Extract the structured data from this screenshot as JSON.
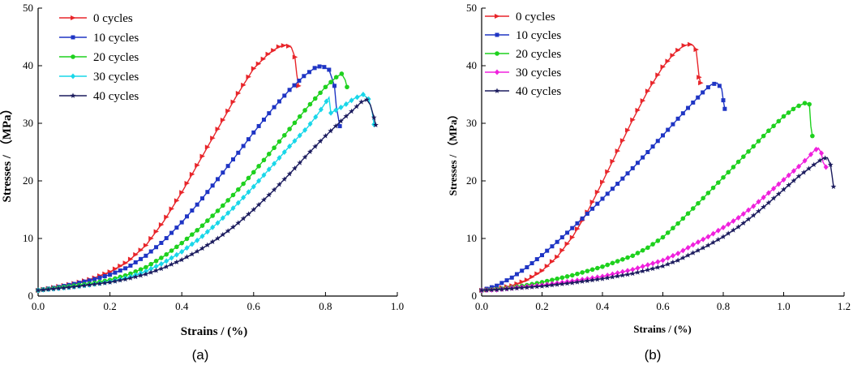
{
  "chart_data": [
    {
      "type": "line",
      "panel_label": "(a)",
      "title": "",
      "xlabel": "Strains /  (%)",
      "ylabel": "Stresses / （MPa）",
      "xlim": [
        0,
        1.0
      ],
      "ylim": [
        0,
        50
      ],
      "xticks": [
        "0.0",
        "0.2",
        "0.4",
        "0.6",
        "0.8",
        "1.0"
      ],
      "yticks": [
        "0",
        "10",
        "20",
        "30",
        "40",
        "50"
      ],
      "grid": false,
      "legend_position": "top-left",
      "series": [
        {
          "name": "0 cycles",
          "color": "#e8252a",
          "marker": "triangle-right",
          "x": [
            0,
            0.05,
            0.1,
            0.15,
            0.2,
            0.25,
            0.3,
            0.35,
            0.4,
            0.45,
            0.5,
            0.55,
            0.6,
            0.64,
            0.67,
            0.69,
            0.705,
            0.715,
            0.72,
            0.725
          ],
          "y": [
            1.0,
            1.6,
            2.2,
            3.0,
            4.2,
            6.0,
            8.8,
            13.0,
            18.0,
            23.5,
            29.0,
            34.5,
            39.5,
            42.0,
            43.3,
            43.6,
            43.2,
            41.5,
            38.5,
            36.5
          ]
        },
        {
          "name": "10 cycles",
          "color": "#1f35c4",
          "marker": "square",
          "x": [
            0,
            0.05,
            0.1,
            0.15,
            0.2,
            0.25,
            0.3,
            0.35,
            0.4,
            0.45,
            0.5,
            0.55,
            0.6,
            0.65,
            0.7,
            0.74,
            0.77,
            0.79,
            0.81,
            0.825,
            0.83,
            0.84
          ],
          "y": [
            1.0,
            1.5,
            2.1,
            2.8,
            3.7,
            5.0,
            7.0,
            9.6,
            12.8,
            16.4,
            20.3,
            24.3,
            28.4,
            32.3,
            35.8,
            38.2,
            39.6,
            40.0,
            39.3,
            36.5,
            33.0,
            29.5
          ]
        },
        {
          "name": "20 cycles",
          "color": "#1ed11e",
          "marker": "circle",
          "x": [
            0,
            0.05,
            0.1,
            0.15,
            0.2,
            0.25,
            0.3,
            0.35,
            0.4,
            0.45,
            0.5,
            0.55,
            0.6,
            0.65,
            0.7,
            0.75,
            0.8,
            0.83,
            0.845,
            0.855,
            0.86
          ],
          "y": [
            1.0,
            1.4,
            1.8,
            2.2,
            2.8,
            3.7,
            5.0,
            6.9,
            9.2,
            11.8,
            14.8,
            18.0,
            21.5,
            25.2,
            29.0,
            32.8,
            36.3,
            38.0,
            38.6,
            37.5,
            36.3
          ]
        },
        {
          "name": "30 cycles",
          "color": "#19d7e9",
          "marker": "diamond",
          "x": [
            0,
            0.05,
            0.1,
            0.15,
            0.2,
            0.25,
            0.3,
            0.35,
            0.4,
            0.45,
            0.5,
            0.55,
            0.6,
            0.65,
            0.7,
            0.75,
            0.78,
            0.81,
            0.815,
            0.85,
            0.88,
            0.905,
            0.92,
            0.93,
            0.935
          ],
          "y": [
            1.0,
            1.3,
            1.6,
            2.0,
            2.5,
            3.2,
            4.3,
            5.8,
            7.7,
            10.0,
            12.7,
            15.7,
            19.0,
            22.5,
            26.0,
            29.3,
            31.7,
            34.5,
            31.8,
            33.0,
            34.3,
            35.0,
            34.2,
            32.0,
            29.8
          ]
        },
        {
          "name": "40 cycles",
          "color": "#1b1b5e",
          "marker": "star",
          "x": [
            0,
            0.05,
            0.1,
            0.15,
            0.2,
            0.25,
            0.3,
            0.35,
            0.4,
            0.45,
            0.5,
            0.55,
            0.6,
            0.65,
            0.7,
            0.75,
            0.8,
            0.85,
            0.88,
            0.9,
            0.915,
            0.925,
            0.935,
            0.94
          ],
          "y": [
            1.0,
            1.3,
            1.6,
            2.0,
            2.4,
            3.0,
            3.8,
            4.9,
            6.3,
            8.0,
            10.0,
            12.3,
            15.0,
            18.0,
            21.2,
            24.6,
            27.8,
            30.8,
            32.5,
            33.7,
            34.1,
            33.2,
            31.0,
            29.7
          ]
        }
      ]
    },
    {
      "type": "line",
      "panel_label": "(b)",
      "title": "",
      "xlabel": "Strains  /  (%)",
      "ylabel": "Stresses / （MPa）",
      "xlim": [
        0,
        1.2
      ],
      "ylim": [
        0,
        50
      ],
      "xticks": [
        "0.0",
        "0.2",
        "0.4",
        "0.6",
        "0.8",
        "1.0",
        "1.2"
      ],
      "yticks": [
        "0",
        "10",
        "20",
        "30",
        "40",
        "50"
      ],
      "grid": false,
      "legend_position": "top-left",
      "series": [
        {
          "name": "0 cycles",
          "color": "#e8252a",
          "marker": "triangle-right",
          "x": [
            0,
            0.05,
            0.1,
            0.15,
            0.2,
            0.25,
            0.3,
            0.35,
            0.4,
            0.45,
            0.5,
            0.55,
            0.6,
            0.64,
            0.67,
            0.69,
            0.7,
            0.71,
            0.715,
            0.72,
            0.725
          ],
          "y": [
            1.0,
            1.3,
            1.8,
            2.8,
            4.4,
            6.8,
            10.2,
            14.6,
            19.8,
            25.2,
            30.6,
            35.6,
            39.8,
            42.3,
            43.5,
            43.7,
            43.5,
            42.8,
            40.5,
            38.0,
            37.0
          ]
        },
        {
          "name": "10 cycles",
          "color": "#1f35c4",
          "marker": "square",
          "x": [
            0,
            0.05,
            0.1,
            0.15,
            0.2,
            0.25,
            0.3,
            0.35,
            0.4,
            0.45,
            0.5,
            0.55,
            0.6,
            0.65,
            0.7,
            0.74,
            0.76,
            0.78,
            0.795,
            0.8,
            0.805
          ],
          "y": [
            1.0,
            1.8,
            3.2,
            5.0,
            7.1,
            9.4,
            11.8,
            14.3,
            16.9,
            19.5,
            22.2,
            25.0,
            27.9,
            30.8,
            33.6,
            35.8,
            36.7,
            37.0,
            36.0,
            34.0,
            32.5
          ]
        },
        {
          "name": "20 cycles",
          "color": "#1ed11e",
          "marker": "circle",
          "x": [
            0,
            0.05,
            0.1,
            0.15,
            0.2,
            0.3,
            0.4,
            0.5,
            0.55,
            0.6,
            0.65,
            0.7,
            0.75,
            0.8,
            0.85,
            0.9,
            0.95,
            1.0,
            1.04,
            1.07,
            1.085,
            1.09,
            1.095
          ],
          "y": [
            1.0,
            1.2,
            1.5,
            1.9,
            2.4,
            3.6,
            5.1,
            7.0,
            8.4,
            10.2,
            12.6,
            15.2,
            17.9,
            20.6,
            23.3,
            26.0,
            28.7,
            31.2,
            32.8,
            33.5,
            33.3,
            29.5,
            27.8
          ]
        },
        {
          "name": "30 cycles",
          "color": "#f020dd",
          "marker": "diamond",
          "x": [
            0,
            0.05,
            0.1,
            0.2,
            0.3,
            0.4,
            0.5,
            0.6,
            0.65,
            0.7,
            0.75,
            0.8,
            0.85,
            0.9,
            0.95,
            1.0,
            1.05,
            1.08,
            1.1,
            1.115,
            1.125,
            1.13,
            1.14
          ],
          "y": [
            1.0,
            1.1,
            1.4,
            1.9,
            2.6,
            3.4,
            4.6,
            6.2,
            7.4,
            8.9,
            10.3,
            11.9,
            13.6,
            15.6,
            17.9,
            20.2,
            22.5,
            24.0,
            25.2,
            25.7,
            24.8,
            23.3,
            22.4
          ]
        },
        {
          "name": "40 cycles",
          "color": "#1b1b5e",
          "marker": "star",
          "x": [
            0,
            0.05,
            0.1,
            0.2,
            0.3,
            0.4,
            0.5,
            0.6,
            0.65,
            0.7,
            0.75,
            0.8,
            0.85,
            0.9,
            0.95,
            1.0,
            1.05,
            1.1,
            1.13,
            1.145,
            1.155,
            1.16,
            1.165
          ],
          "y": [
            1.0,
            1.1,
            1.3,
            1.7,
            2.3,
            3.0,
            3.9,
            5.2,
            6.2,
            7.5,
            8.8,
            10.3,
            12.0,
            14.0,
            16.2,
            18.5,
            20.8,
            22.8,
            23.9,
            24.0,
            22.8,
            21.0,
            19.0
          ]
        }
      ]
    }
  ]
}
